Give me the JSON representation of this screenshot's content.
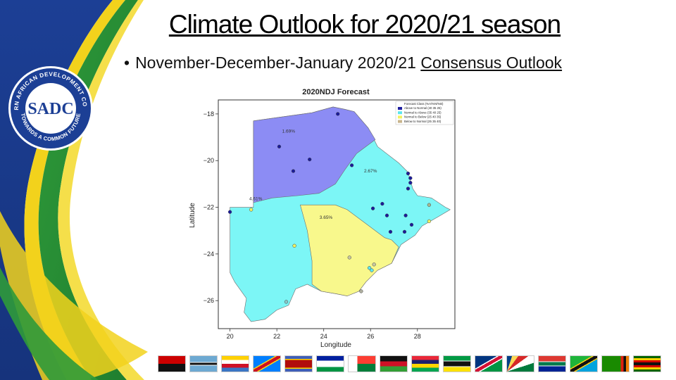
{
  "slide": {
    "title": "Climate Outlook for 2020/21 season",
    "bullet": "•",
    "subtitle_plain": "November-December-January 2020/21 ",
    "subtitle_underlined": "Consensus Outlook"
  },
  "logo": {
    "ring_text": "SOUTHERN AFRICAN DEVELOPMENT COMMUNITY",
    "ring_text_bottom": "TOWARDS A COMMON FUTURE",
    "center_text": "SADC"
  },
  "map": {
    "title": "2020NDJ Forecast",
    "xlabel": "Longitude",
    "ylabel": "Latitude",
    "xticks": [
      {
        "label": "20",
        "v": 20
      },
      {
        "label": "22",
        "v": 22
      },
      {
        "label": "24",
        "v": 24
      },
      {
        "label": "26",
        "v": 26
      },
      {
        "label": "28",
        "v": 28
      }
    ],
    "yticks": [
      {
        "label": "−18",
        "v": -18
      },
      {
        "label": "−20",
        "v": -20
      },
      {
        "label": "−22",
        "v": -22
      },
      {
        "label": "−24",
        "v": -24
      },
      {
        "label": "−26",
        "v": -26
      }
    ],
    "legend": [
      {
        "label": "Forecast Class (%A/%N/%B)",
        "color": ""
      },
      {
        "label": "Above to Normal (40 35 25)",
        "color": "#2020a0"
      },
      {
        "label": "Normal to Above (35 40 25)",
        "color": "#5ce6ee"
      },
      {
        "label": "Normal to Below (25 40 35)",
        "color": "#f2f260"
      },
      {
        "label": "Below to Normal (25 35 40)",
        "color": "#c8b48c"
      }
    ],
    "zone_colors": {
      "above_normal": "#8c8cf4",
      "normal_above": "#7cf6f6",
      "normal_below": "#f8f88c"
    },
    "zone_labels": [
      {
        "text": "1.69%",
        "lon": 22.5,
        "lat": -18.8
      },
      {
        "text": "2.67%",
        "lon": 26.0,
        "lat": -20.5
      },
      {
        "text": "4.61%",
        "lon": 21.1,
        "lat": -21.7
      },
      {
        "text": "3.65%",
        "lon": 24.1,
        "lat": -22.5
      }
    ],
    "stations": [
      {
        "lon": 24.6,
        "lat": -18.0,
        "c": "#1a1a9a"
      },
      {
        "lon": 22.1,
        "lat": -19.4,
        "c": "#1a1a9a"
      },
      {
        "lon": 23.4,
        "lat": -19.95,
        "c": "#1a1a9a"
      },
      {
        "lon": 22.7,
        "lat": -20.45,
        "c": "#1a1a9a"
      },
      {
        "lon": 25.2,
        "lat": -20.2,
        "c": "#1a1a9a"
      },
      {
        "lon": 27.6,
        "lat": -20.55,
        "c": "#1a1a9a"
      },
      {
        "lon": 27.7,
        "lat": -20.75,
        "c": "#1a1a9a"
      },
      {
        "lon": 27.7,
        "lat": -20.95,
        "c": "#1a1a9a"
      },
      {
        "lon": 27.6,
        "lat": -21.2,
        "c": "#1a1a9a"
      },
      {
        "lon": 26.5,
        "lat": -21.85,
        "c": "#1a1a9a"
      },
      {
        "lon": 26.1,
        "lat": -22.05,
        "c": "#1a1a9a"
      },
      {
        "lon": 26.7,
        "lat": -22.35,
        "c": "#1a1a9a"
      },
      {
        "lon": 27.5,
        "lat": -22.35,
        "c": "#1a1a9a"
      },
      {
        "lon": 27.75,
        "lat": -22.75,
        "c": "#1a1a9a"
      },
      {
        "lon": 26.85,
        "lat": -23.05,
        "c": "#1a1a9a"
      },
      {
        "lon": 27.45,
        "lat": -23.05,
        "c": "#1a1a9a"
      },
      {
        "lon": 20.0,
        "lat": -22.2,
        "c": "#1a1a9a"
      },
      {
        "lon": 28.5,
        "lat": -21.9,
        "c": "#a8b890"
      },
      {
        "lon": 28.5,
        "lat": -22.6,
        "c": "#f2f260"
      },
      {
        "lon": 20.9,
        "lat": -22.1,
        "c": "#f2f260"
      },
      {
        "lon": 22.75,
        "lat": -23.65,
        "c": "#f2f260"
      },
      {
        "lon": 25.1,
        "lat": -24.15,
        "c": "#c8c8a0"
      },
      {
        "lon": 26.15,
        "lat": -24.45,
        "c": "#c8c8a0"
      },
      {
        "lon": 25.95,
        "lat": -24.6,
        "c": "#5ce6ee"
      },
      {
        "lon": 26.05,
        "lat": -24.7,
        "c": "#5ce6ee"
      },
      {
        "lon": 25.6,
        "lat": -25.6,
        "c": "#b0b0a0"
      },
      {
        "lon": 22.4,
        "lat": -26.05,
        "c": "#88c8c8"
      }
    ]
  },
  "flags": [
    "angola-flag",
    "botswana-flag",
    "comoros-flag",
    "drc-flag",
    "eswatini-flag",
    "lesotho-flag",
    "madagascar-flag",
    "malawi-flag",
    "mauritius-flag",
    "mozambique-flag",
    "namibia-flag",
    "seychelles-flag",
    "south-africa-flag",
    "tanzania-flag",
    "zambia-flag",
    "zimbabwe-flag"
  ]
}
